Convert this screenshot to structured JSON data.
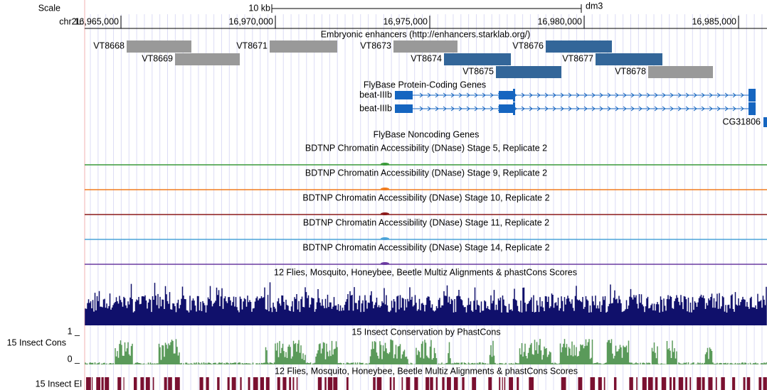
{
  "scale": {
    "label": "Scale",
    "size": "10 kb",
    "assembly": "dm3"
  },
  "ruler": {
    "chrom": "chr2L:",
    "positions": [
      "16,965,000",
      "16,970,000",
      "16,975,000",
      "16,980,000",
      "16,985,000"
    ]
  },
  "tracks": {
    "enhancers": {
      "title": "Embryonic enhancers (http://enhancers.starklab.org/)",
      "items": [
        "VT8668",
        "VT8669",
        "VT8671",
        "VT8673",
        "VT8674",
        "VT8675",
        "VT8676",
        "VT8677",
        "VT8678"
      ]
    },
    "coding": {
      "title": "FlyBase Protein-Coding Genes",
      "genes": [
        "beat-IIIb",
        "beat-IIIb",
        "CG31806"
      ]
    },
    "noncoding": {
      "title": "FlyBase Noncoding Genes"
    },
    "dnase": [
      "BDTNP Chromatin Accessibility (DNase) Stage 5, Replicate 2",
      "BDTNP Chromatin Accessibility (DNase) Stage 9, Replicate 2",
      "BDTNP Chromatin Accessibility (DNase) Stage 10, Replicate 2",
      "BDTNP Chromatin Accessibility (DNase) Stage 11, Replicate 2",
      "BDTNP Chromatin Accessibility (DNase) Stage 14, Replicate 2"
    ],
    "multiz": {
      "title": "12 Flies, Mosquito, Honeybee, Beetle Multiz Alignments & phastCons Scores"
    },
    "phastcons": {
      "title": "15 Insect Conservation by PhastCons",
      "label": "15 Insect Cons",
      "top": "1 _",
      "bottom": "0 _"
    },
    "elements": {
      "title": "12 Flies, Mosquito, Honeybee, Beetle Multiz Alignments & phastCons Scores",
      "label": "15 Insect El"
    }
  }
}
